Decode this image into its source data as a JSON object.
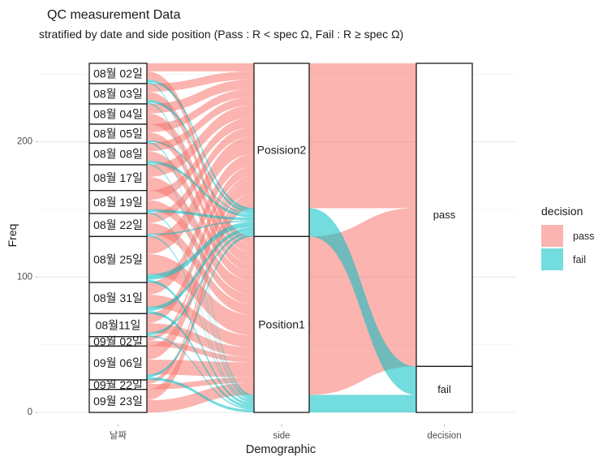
{
  "title": "QC measurement Data",
  "subtitle": "stratified by date and side position (Pass : R < spec Ω, Fail : R ≥ spec Ω)",
  "axis": {
    "y_label": "Freq",
    "x_label": "Demographic",
    "y_ticks": [
      "0",
      "100",
      "200"
    ],
    "y_minor_gridlines": [
      50,
      150,
      250
    ],
    "x_ticks": [
      "날짜",
      "side",
      "decision"
    ]
  },
  "legend": {
    "title": "decision",
    "fill_alpha": 0.55,
    "items": [
      {
        "label": "pass",
        "color": "#F8766D"
      },
      {
        "label": "fail",
        "color": "#00BFC4"
      }
    ]
  },
  "chart_data": {
    "type": "alluvial",
    "title": "QC measurement Data",
    "xlabel": "Demographic",
    "ylabel": "Freq",
    "ylim": [
      0,
      258
    ],
    "y_major_ticks": [
      0,
      100,
      200
    ],
    "grid": "horizontal-only",
    "legend_position": "right",
    "axes": [
      {
        "name": "날짜",
        "strata": [
          {
            "label": "08월 02일",
            "value": 15
          },
          {
            "label": "08월 03일",
            "value": 15
          },
          {
            "label": "08월 04일",
            "value": 15
          },
          {
            "label": "08월 05일",
            "value": 14
          },
          {
            "label": "08월 08일",
            "value": 16
          },
          {
            "label": "08월 17일",
            "value": 19
          },
          {
            "label": "08월 19일",
            "value": 17
          },
          {
            "label": "08월 22일",
            "value": 17
          },
          {
            "label": "08월 25일",
            "value": 34
          },
          {
            "label": "08월 31일",
            "value": 23
          },
          {
            "label": "08월11일",
            "value": 17
          },
          {
            "label": "09월 02일",
            "value": 7
          },
          {
            "label": "09월 06일",
            "value": 25
          },
          {
            "label": "09월 22일",
            "value": 7
          },
          {
            "label": "09월 23일",
            "value": 17
          }
        ]
      },
      {
        "name": "side",
        "strata": [
          {
            "label": "Posision2",
            "value": 128
          },
          {
            "label": "Position1",
            "value": 130
          }
        ]
      },
      {
        "name": "decision",
        "strata": [
          {
            "label": "pass",
            "value": 224
          },
          {
            "label": "fail",
            "value": 34
          }
        ]
      }
    ],
    "flows_date_to_side": [
      {
        "date": "08월 02일",
        "pass_to_Posision2": 6,
        "pass_to_Position1": 6,
        "fail_to_Posision2": 2,
        "fail_to_Position1": 1
      },
      {
        "date": "08월 03일",
        "pass_to_Posision2": 6,
        "pass_to_Position1": 6,
        "fail_to_Posision2": 2,
        "fail_to_Position1": 1
      },
      {
        "date": "08월 04일",
        "pass_to_Posision2": 7,
        "pass_to_Position1": 8,
        "fail_to_Posision2": 0,
        "fail_to_Position1": 0
      },
      {
        "date": "08월 05일",
        "pass_to_Posision2": 6,
        "pass_to_Position1": 6,
        "fail_to_Posision2": 1,
        "fail_to_Position1": 1
      },
      {
        "date": "08월 08일",
        "pass_to_Posision2": 6,
        "pass_to_Position1": 7,
        "fail_to_Posision2": 2,
        "fail_to_Position1": 1
      },
      {
        "date": "08월 17일",
        "pass_to_Posision2": 9,
        "pass_to_Position1": 10,
        "fail_to_Posision2": 0,
        "fail_to_Position1": 0
      },
      {
        "date": "08월 19일",
        "pass_to_Posision2": 7,
        "pass_to_Position1": 7,
        "fail_to_Posision2": 2,
        "fail_to_Position1": 1
      },
      {
        "date": "08월 22일",
        "pass_to_Posision2": 7,
        "pass_to_Position1": 8,
        "fail_to_Posision2": 1,
        "fail_to_Position1": 1
      },
      {
        "date": "08월 25일",
        "pass_to_Posision2": 13,
        "pass_to_Position1": 15,
        "fail_to_Posision2": 4,
        "fail_to_Position1": 2
      },
      {
        "date": "08월 31일",
        "pass_to_Posision2": 9,
        "pass_to_Position1": 9,
        "fail_to_Posision2": 3,
        "fail_to_Position1": 2
      },
      {
        "date": "08월11일",
        "pass_to_Posision2": 7,
        "pass_to_Position1": 7,
        "fail_to_Posision2": 2,
        "fail_to_Position1": 1
      },
      {
        "date": "09월 02일",
        "pass_to_Posision2": 3,
        "pass_to_Position1": 4,
        "fail_to_Posision2": 0,
        "fail_to_Position1": 0
      },
      {
        "date": "09월 06일",
        "pass_to_Posision2": 10,
        "pass_to_Position1": 11,
        "fail_to_Posision2": 2,
        "fail_to_Position1": 2
      },
      {
        "date": "09월 22일",
        "pass_to_Posision2": 3,
        "pass_to_Position1": 4,
        "fail_to_Posision2": 0,
        "fail_to_Position1": 0
      },
      {
        "date": "09월 23일",
        "pass_to_Posision2": 8,
        "pass_to_Position1": 9,
        "fail_to_Posision2": 0,
        "fail_to_Position1": 0
      }
    ],
    "flows_side_to_decision": [
      {
        "side": "Posision2",
        "decision": "pass",
        "value": 107
      },
      {
        "side": "Position1",
        "decision": "pass",
        "value": 117
      },
      {
        "side": "Posision2",
        "decision": "fail",
        "value": 21
      },
      {
        "side": "Position1",
        "decision": "fail",
        "value": 13
      }
    ]
  }
}
